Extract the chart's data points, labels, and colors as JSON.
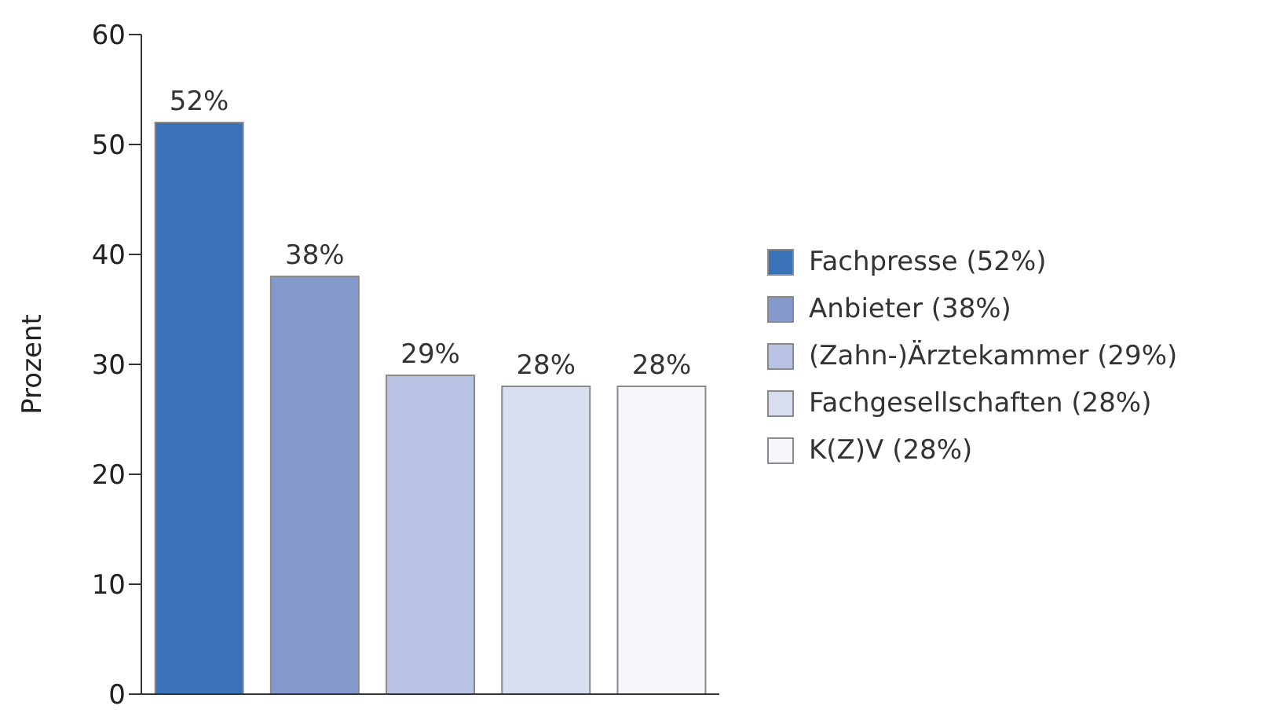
{
  "chart_data": {
    "type": "bar",
    "ylabel": "Prozent",
    "categories": [
      null,
      null,
      null,
      null,
      null
    ],
    "series": [
      {
        "name": "Fachpresse (52%)",
        "color": "#3a72b8",
        "values": [
          52,
          null,
          null,
          null,
          null
        ],
        "value_labels": [
          "52%",
          null,
          null,
          null,
          null
        ]
      },
      {
        "name": "Anbieter (38%)",
        "color": "#8499cc",
        "values": [
          null,
          38,
          null,
          null,
          null
        ],
        "value_labels": [
          null,
          "38%",
          null,
          null,
          null
        ]
      },
      {
        "name": "(Zahn-)Ärztekammer (29%)",
        "color": "#b9c3e3",
        "values": [
          null,
          null,
          29,
          null,
          null
        ],
        "value_labels": [
          null,
          null,
          "29%",
          null,
          null
        ]
      },
      {
        "name": "Fachgesellschaften (28%)",
        "color": "#d8ddf0",
        "values": [
          null,
          null,
          null,
          28,
          null
        ],
        "value_labels": [
          null,
          null,
          null,
          "28%",
          null
        ]
      },
      {
        "name": "K(Z)V (28%)",
        "color": "#f6f6fb",
        "values": [
          null,
          null,
          null,
          null,
          28
        ],
        "value_labels": [
          null,
          null,
          null,
          null,
          "28%"
        ]
      }
    ],
    "stacked": true,
    "ylim": [
      0,
      60
    ],
    "yticks": [
      0,
      10,
      20,
      30,
      40,
      50,
      60
    ],
    "tick_labels": "y",
    "grid": false,
    "legend": "right"
  }
}
